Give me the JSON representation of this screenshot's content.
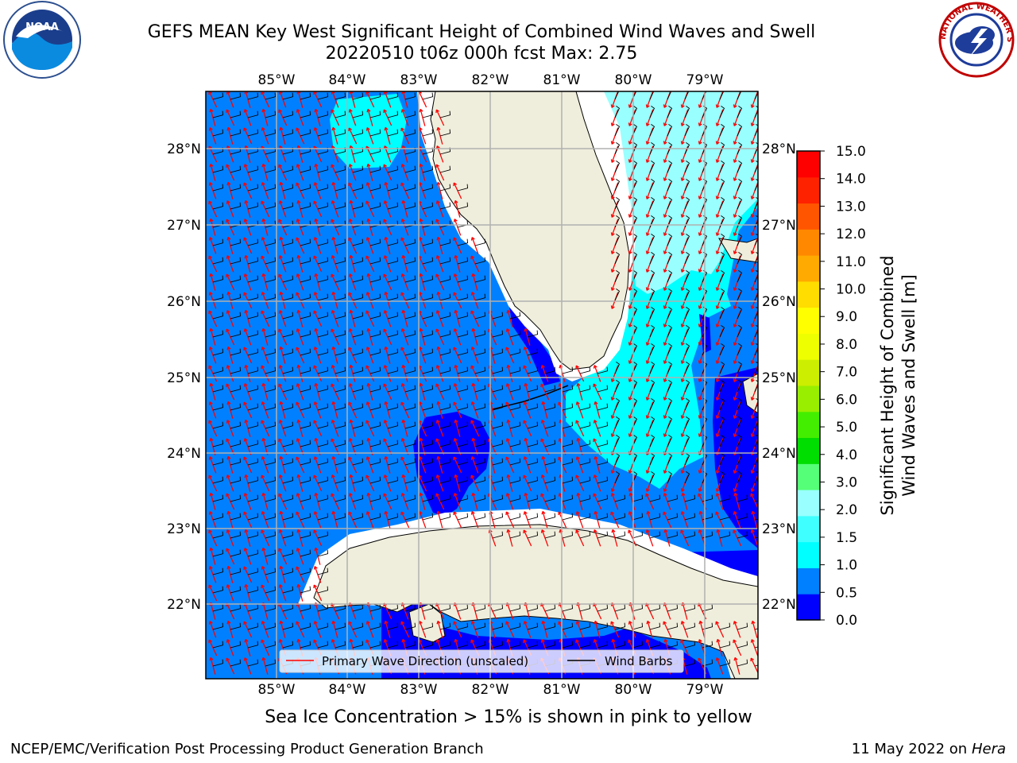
{
  "title_line1": "GEFS MEAN Key West Significant Height of Combined Wind Waves and Swell",
  "title_line2": "20220510 t06z 000h fcst   Max: 2.75",
  "lon_labels": [
    "85°W",
    "84°W",
    "83°W",
    "82°W",
    "81°W",
    "80°W",
    "79°W"
  ],
  "lat_labels": [
    "28°N",
    "27°N",
    "26°N",
    "25°N",
    "24°N",
    "23°N",
    "22°N"
  ],
  "colorbar": {
    "label_line1": "Significant Height of Combined",
    "label_line2": "Wind Waves and Swell [m]",
    "ticks": [
      "15.0",
      "14.0",
      "13.0",
      "12.0",
      "11.0",
      "10.0",
      "9.0",
      "8.0",
      "7.0",
      "6.0",
      "5.0",
      "4.0",
      "3.0",
      "2.0",
      "1.5",
      "1.0",
      "0.5",
      "0.0"
    ],
    "colors": [
      "#0000ff",
      "#0080ff",
      "#00ffff",
      "#40ffff",
      "#99ffff",
      "#55ff77",
      "#00dd00",
      "#44ee00",
      "#99ee00",
      "#ccee00",
      "#eeff00",
      "#ffff00",
      "#ffdd00",
      "#ffaa00",
      "#ff8800",
      "#ff5500",
      "#ff2200",
      "#ff0000"
    ]
  },
  "legend": {
    "wave_direction": "Primary Wave Direction (unscaled)",
    "wind_barbs": "Wind Barbs"
  },
  "ice_note": "Sea Ice Concentration > 15% is shown in pink to yellow",
  "footer_left": "NCEP/EMC/Verification Post Processing Product Generation Branch",
  "footer_right_date": "11 May 2022 on",
  "footer_right_host": "Hera",
  "logo_left": "NOAA",
  "logo_right": "NATIONAL WEATHER SERVICE",
  "colors": {
    "land": "#efeedc",
    "wave_arrow": "#ff0000",
    "wind_barb": "#000000",
    "grid": "#b0b0b0"
  }
}
